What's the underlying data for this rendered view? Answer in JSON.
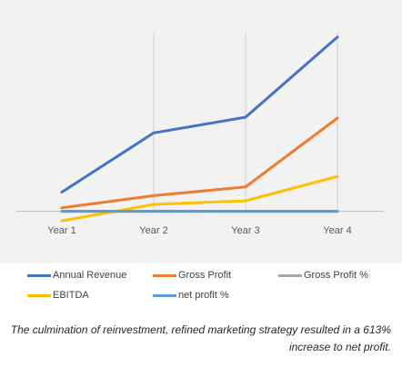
{
  "chart_data": {
    "type": "line",
    "categories": [
      "Year 1",
      "Year 2",
      "Year 3",
      "Year 4"
    ],
    "series": [
      {
        "name": "Annual Revenue",
        "color": "#4472c4",
        "values": [
          22,
          90,
          108,
          200
        ]
      },
      {
        "name": "Gross Profit",
        "color": "#ed7d31",
        "values": [
          4,
          18,
          28,
          107
        ]
      },
      {
        "name": "Gross Profit %",
        "color": "#a5a5a5",
        "values": [
          0,
          0,
          0,
          0
        ]
      },
      {
        "name": "EBITDA",
        "color": "#ffc000",
        "values": [
          -11,
          8,
          12,
          40
        ]
      },
      {
        "name": "net profit %",
        "color": "#5b9bd5",
        "values": [
          0,
          0,
          0,
          0
        ]
      }
    ],
    "ylim": [
      -15,
      205
    ],
    "grid": "vertical",
    "legend_position": "bottom"
  },
  "caption": "The culmination of reinvestment, refined marketing strategy resulted in a 613% increase to net profit."
}
